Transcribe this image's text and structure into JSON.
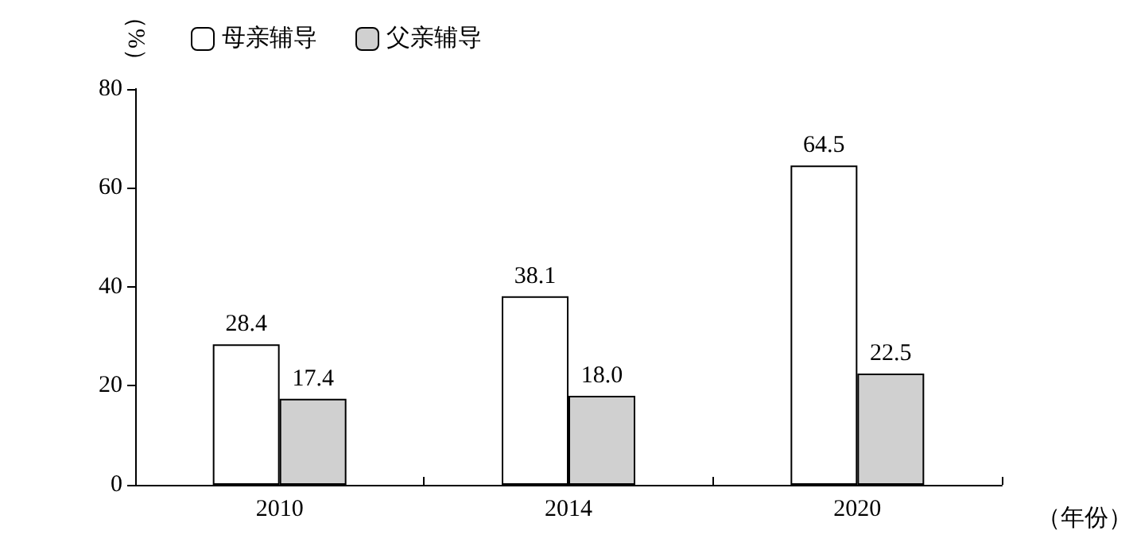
{
  "chart_data": {
    "type": "bar",
    "ylabel": "（%）",
    "xlabel": "（年份）",
    "categories": [
      "2010",
      "2014",
      "2020"
    ],
    "series": [
      {
        "name": "母亲辅导",
        "color": "#ffffff",
        "values": [
          28.4,
          38.1,
          64.5
        ],
        "value_labels": [
          "28.4",
          "38.1",
          "64.5"
        ]
      },
      {
        "name": "父亲辅导",
        "color": "#d0d0d0",
        "values": [
          17.4,
          18.0,
          22.5
        ],
        "value_labels": [
          "17.4",
          "18.0",
          "22.5"
        ]
      }
    ],
    "ylim": [
      0,
      80
    ],
    "yticks": [
      0,
      20,
      40,
      60,
      80
    ],
    "legend": "top left"
  }
}
